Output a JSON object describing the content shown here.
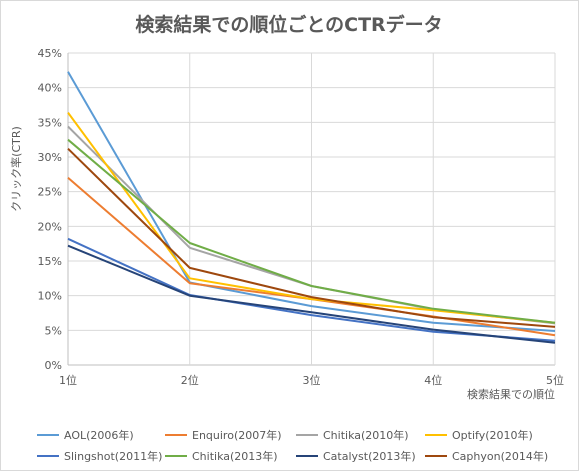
{
  "chart_data": {
    "type": "line",
    "title": "検索結果での順位ごとのCTRデータ",
    "xlabel": "検索結果での順位",
    "ylabel": "クリック率(CTR)",
    "categories": [
      "1位",
      "2位",
      "3位",
      "4位",
      "5位"
    ],
    "ylim": [
      0,
      45
    ],
    "yticks": [
      "0%",
      "5%",
      "10%",
      "15%",
      "20%",
      "25%",
      "30%",
      "35%",
      "40%",
      "45%"
    ],
    "grid": true,
    "legend_position": "bottom",
    "series": [
      {
        "name": "AOL(2006年)",
        "color": "#5b9bd5",
        "values": [
          42.3,
          11.9,
          8.5,
          6.1,
          4.9
        ]
      },
      {
        "name": "Enquiro(2007年)",
        "color": "#ed7d31",
        "values": [
          27.0,
          11.8,
          9.5,
          7.0,
          4.3
        ]
      },
      {
        "name": "Chitika(2010年)",
        "color": "#a5a5a5",
        "values": [
          34.4,
          16.9,
          11.4,
          8.0,
          6.0
        ]
      },
      {
        "name": "Optify(2010年)",
        "color": "#ffc000",
        "values": [
          36.4,
          12.5,
          9.5,
          7.9,
          6.1
        ]
      },
      {
        "name": "Slingshot(2011年)",
        "color": "#4472c4",
        "values": [
          18.2,
          10.1,
          7.2,
          4.8,
          3.5
        ]
      },
      {
        "name": "Chitika(2013年)",
        "color": "#70ad47",
        "values": [
          32.5,
          17.6,
          11.4,
          8.1,
          6.1
        ]
      },
      {
        "name": "Catalyst(2013年)",
        "color": "#264478",
        "values": [
          17.2,
          10.0,
          7.6,
          5.1,
          3.2
        ]
      },
      {
        "name": "Caphyon(2014年)",
        "color": "#9e480e",
        "values": [
          31.2,
          14.0,
          9.8,
          6.9,
          5.5
        ]
      }
    ]
  }
}
